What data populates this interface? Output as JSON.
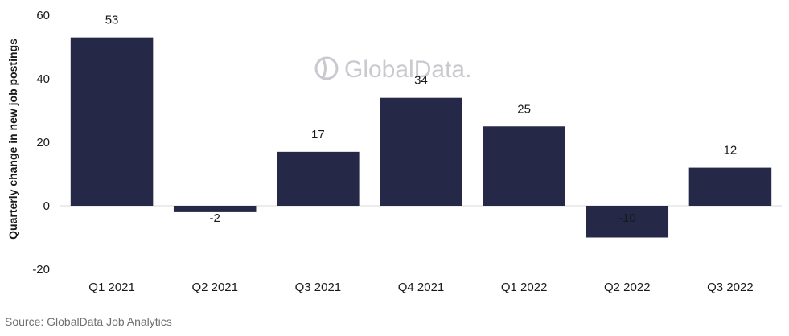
{
  "chart_data": {
    "type": "bar",
    "categories": [
      "Q1 2021",
      "Q2 2021",
      "Q3 2021",
      "Q4 2021",
      "Q1 2022",
      "Q2 2022",
      "Q3 2022"
    ],
    "values": [
      53,
      -2,
      17,
      34,
      25,
      -10,
      12
    ],
    "data_labels": [
      "53",
      "-2",
      "17",
      "34",
      "25",
      "-10",
      "12"
    ],
    "ylabel": "Quarterly change in new job postings",
    "yticks": [
      -20,
      0,
      20,
      40,
      60
    ],
    "ylim": [
      -20,
      60
    ],
    "grid": false,
    "bar_color": "#262847",
    "zero_line_color": "#d9d9d9"
  },
  "watermark": {
    "text": "GlobalData."
  },
  "source": "Source: GlobalData Job Analytics"
}
